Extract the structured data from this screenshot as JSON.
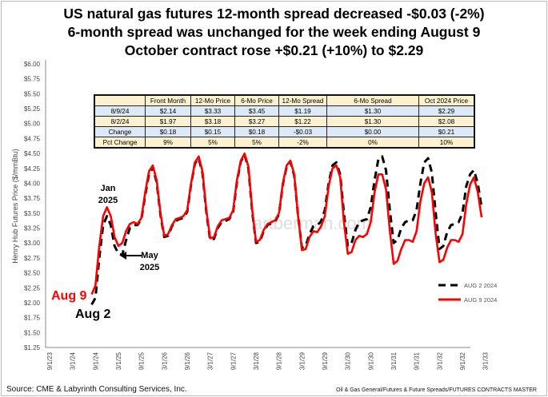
{
  "chart_data": {
    "type": "line",
    "title": [
      "US natural gas futures 12-month spread decreased -$0.03 (-2%)",
      "6-month spread was unchanged for the week ending August 9",
      "October contract rose +$0.21 (+10%) to $2.29"
    ],
    "xlabel": "",
    "ylabel": "Henry Hub Futures Price ($/mmBtu)",
    "ylim": [
      1.25,
      6.0
    ],
    "yticks": [
      "$1.25",
      "$1.50",
      "$1.75",
      "$2.00",
      "$2.25",
      "$2.50",
      "$2.75",
      "$3.00",
      "$3.25",
      "$3.50",
      "$3.75",
      "$4.00",
      "$4.25",
      "$4.50",
      "$4.75",
      "$5.00",
      "$5.25",
      "$5.50",
      "$5.75",
      "$6.00"
    ],
    "xticks": [
      "9/1/23",
      "3/1/24",
      "9/1/24",
      "3/1/25",
      "9/1/25",
      "3/1/26",
      "9/1/26",
      "3/1/27",
      "9/1/27",
      "3/1/28",
      "9/1/28",
      "3/1/29",
      "9/1/29",
      "3/1/30",
      "9/1/30",
      "3/1/31",
      "9/1/31",
      "3/1/32",
      "9/1/32",
      "3/1/33"
    ],
    "x_start_month": "2024-08",
    "legend_position": "right",
    "series": [
      {
        "name": "AUG 2 2024",
        "color": "#000000",
        "style": "dashed",
        "values": [
          1.97,
          2.08,
          2.75,
          3.3,
          3.45,
          3.3,
          2.95,
          2.82,
          2.8,
          3.05,
          3.25,
          3.3,
          3.3,
          3.4,
          3.8,
          4.15,
          4.27,
          4.02,
          3.47,
          3.1,
          3.12,
          3.28,
          3.37,
          3.4,
          3.42,
          3.52,
          3.98,
          4.33,
          4.42,
          4.17,
          3.52,
          3.05,
          3.07,
          3.25,
          3.35,
          3.37,
          3.4,
          3.52,
          4.02,
          4.36,
          4.48,
          4.25,
          3.52,
          3.0,
          3.02,
          3.2,
          3.3,
          3.33,
          3.36,
          3.48,
          3.98,
          4.28,
          4.36,
          4.13,
          3.45,
          2.92,
          2.95,
          3.15,
          3.28,
          3.3,
          3.36,
          3.55,
          4.0,
          4.3,
          4.35,
          4.15,
          3.5,
          2.95,
          3.0,
          3.22,
          3.35,
          3.38,
          3.4,
          3.6,
          4.05,
          4.4,
          4.45,
          4.22,
          3.55,
          3.0,
          3.05,
          3.25,
          3.35,
          3.38,
          3.38,
          3.55,
          4.0,
          4.35,
          4.42,
          4.18,
          3.5,
          2.9,
          2.95,
          3.18,
          3.3,
          3.32,
          3.35,
          3.5,
          3.95,
          4.15,
          4.22,
          4.0,
          3.6
        ]
      },
      {
        "name": "AUG 9 2024",
        "color": "#ff0000",
        "style": "solid",
        "values": [
          2.14,
          2.29,
          2.95,
          3.45,
          3.6,
          3.45,
          3.1,
          2.95,
          3.0,
          3.2,
          3.32,
          3.35,
          3.32,
          3.42,
          3.85,
          4.2,
          4.3,
          4.05,
          3.5,
          3.12,
          3.15,
          3.3,
          3.4,
          3.42,
          3.45,
          3.55,
          4.0,
          4.35,
          4.45,
          4.2,
          3.55,
          3.08,
          3.1,
          3.28,
          3.38,
          3.4,
          3.42,
          3.55,
          4.05,
          4.38,
          4.5,
          4.28,
          3.55,
          3.02,
          3.05,
          3.22,
          3.32,
          3.35,
          3.38,
          3.5,
          4.0,
          4.3,
          4.38,
          4.15,
          3.45,
          2.88,
          2.9,
          3.1,
          3.2,
          3.18,
          3.28,
          3.45,
          3.95,
          4.25,
          4.3,
          4.1,
          3.35,
          2.82,
          2.85,
          3.05,
          3.12,
          3.1,
          3.15,
          3.35,
          3.85,
          4.15,
          4.15,
          3.9,
          3.2,
          2.65,
          2.7,
          2.9,
          3.05,
          3.05,
          3.02,
          3.2,
          3.7,
          4.0,
          4.1,
          3.85,
          3.15,
          2.68,
          2.72,
          2.92,
          3.05,
          3.05,
          3.02,
          3.15,
          3.65,
          3.98,
          4.1,
          3.85,
          3.43
        ]
      }
    ],
    "annotations": {
      "jan": [
        "Jan",
        "2025"
      ],
      "may": [
        "May",
        "2025"
      ],
      "aug9": "Aug 9",
      "aug2": "Aug 2"
    },
    "watermark": "artberman.com"
  },
  "table": {
    "headers": [
      "",
      "Front Month",
      "12-Mo Price",
      "6-Mo Price",
      "12-Mo Spread",
      "6-Mo Spread",
      "Oct 2024 Price"
    ],
    "rows": [
      [
        "8/9/24",
        "$2.14",
        "$3.33",
        "$3.45",
        "$1.19",
        "$1.30",
        "$2.29"
      ],
      [
        "8/2/24",
        "$1.97",
        "$3.18",
        "$3.27",
        "$1.22",
        "$1.30",
        "$2.08"
      ],
      [
        "Change",
        "$0.18",
        "$0.15",
        "$0.18",
        "-$0.03",
        "$0.00",
        "$0.21"
      ],
      [
        "Pct Change",
        "9%",
        "5%",
        "5%",
        "-2%",
        "0%",
        "10%"
      ]
    ]
  },
  "footer": {
    "source": "Source: CME & Labyrinth Consulting Services, Inc.",
    "path": "Oil & Gas General/Futures & Future Spreads/FUTURES CONTRACTS MASTER"
  }
}
